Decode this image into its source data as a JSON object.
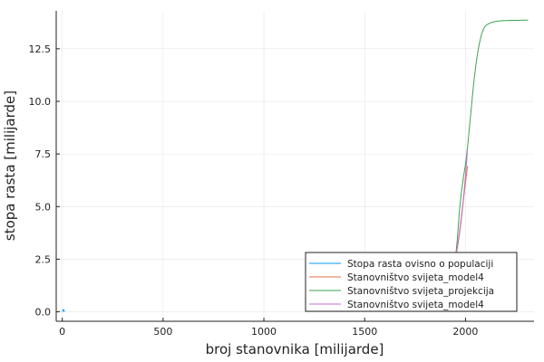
{
  "chart_data": {
    "type": "line",
    "xlabel": "broj stanovnika [milijarde]",
    "ylabel": "stopa rasta [milijarde]",
    "xlim": [
      -30,
      2340
    ],
    "ylim": [
      -0.45,
      14.3
    ],
    "xticks": [
      0,
      500,
      1000,
      1500,
      2000
    ],
    "xtick_labels": [
      "0",
      "500",
      "1000",
      "1500",
      "2000"
    ],
    "yticks": [
      0,
      2.5,
      5,
      7.5,
      10,
      12.5
    ],
    "ytick_labels": [
      "0.0",
      "2.5",
      "5.0",
      "7.5",
      "10.0",
      "12.5"
    ],
    "grid": true,
    "legend_position": "bottom-right",
    "series": [
      {
        "name": "Stopa rasta ovisno o populaciji",
        "color": "#009AFA",
        "x": [
          1,
          3,
          5,
          7,
          9,
          11
        ],
        "y": [
          0.0,
          0.05,
          0.1,
          0.11,
          0.06,
          0.0
        ]
      },
      {
        "name": "Stanovništvo svijeta_model4",
        "color": "#E26F46",
        "x": [
          1950,
          1960,
          1970,
          1980,
          1990,
          2000,
          2010
        ],
        "y": [
          2.54,
          3.03,
          3.69,
          4.44,
          5.32,
          6.13,
          6.92
        ]
      },
      {
        "name": "Stanovništvo svijeta_projekcija",
        "color": "#3EA44E",
        "x": [
          1950,
          1960,
          1970,
          1980,
          1990,
          2000,
          2010,
          2020,
          2030,
          2040,
          2050,
          2060,
          2070,
          2080,
          2090,
          2100,
          2120,
          2140,
          2160,
          2180,
          2200,
          2230,
          2260,
          2290,
          2310
        ],
        "y": [
          2.5,
          3.5,
          4.8,
          5.7,
          6.4,
          7.0,
          7.8,
          8.8,
          9.8,
          10.8,
          11.6,
          12.3,
          12.8,
          13.2,
          13.45,
          13.6,
          13.72,
          13.78,
          13.81,
          13.83,
          13.84,
          13.85,
          13.85,
          13.86,
          13.86
        ]
      },
      {
        "name": "Stanovništvo svijeta_model4",
        "color": "#C271D2",
        "x": [
          1950,
          1960,
          1970,
          1980,
          1990,
          2000,
          2010
        ],
        "y": [
          2.55,
          3.1,
          3.8,
          4.55,
          5.4,
          6.45,
          7.7
        ]
      }
    ]
  }
}
